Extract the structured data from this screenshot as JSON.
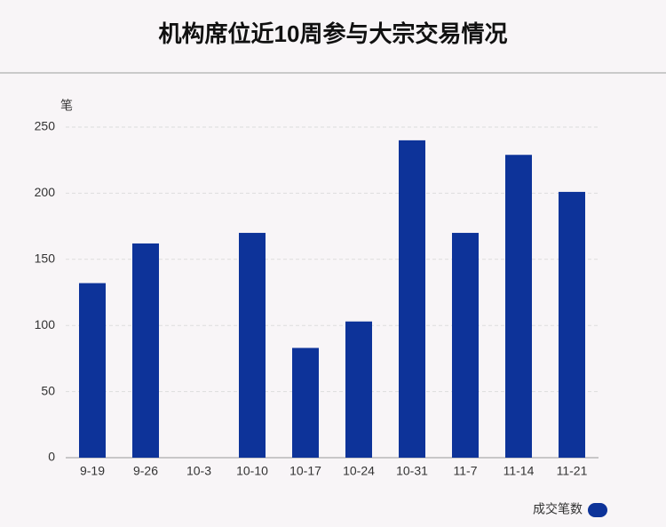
{
  "chart_data": {
    "type": "bar",
    "title": "机构席位近10周参与大宗交易情况",
    "y_label": "笔",
    "categories": [
      "9-19",
      "9-26",
      "10-3",
      "10-10",
      "10-17",
      "10-24",
      "10-31",
      "11-7",
      "11-14",
      "11-21"
    ],
    "series": [
      {
        "name": "成交笔数",
        "color": "#0d3399",
        "values": [
          132,
          162,
          0,
          170,
          83,
          103,
          240,
          170,
          229,
          201
        ]
      }
    ],
    "ylim": [
      0,
      250
    ],
    "yticks": [
      0,
      50,
      100,
      150,
      200,
      250
    ],
    "grid": true,
    "legend": "bottom-right"
  }
}
